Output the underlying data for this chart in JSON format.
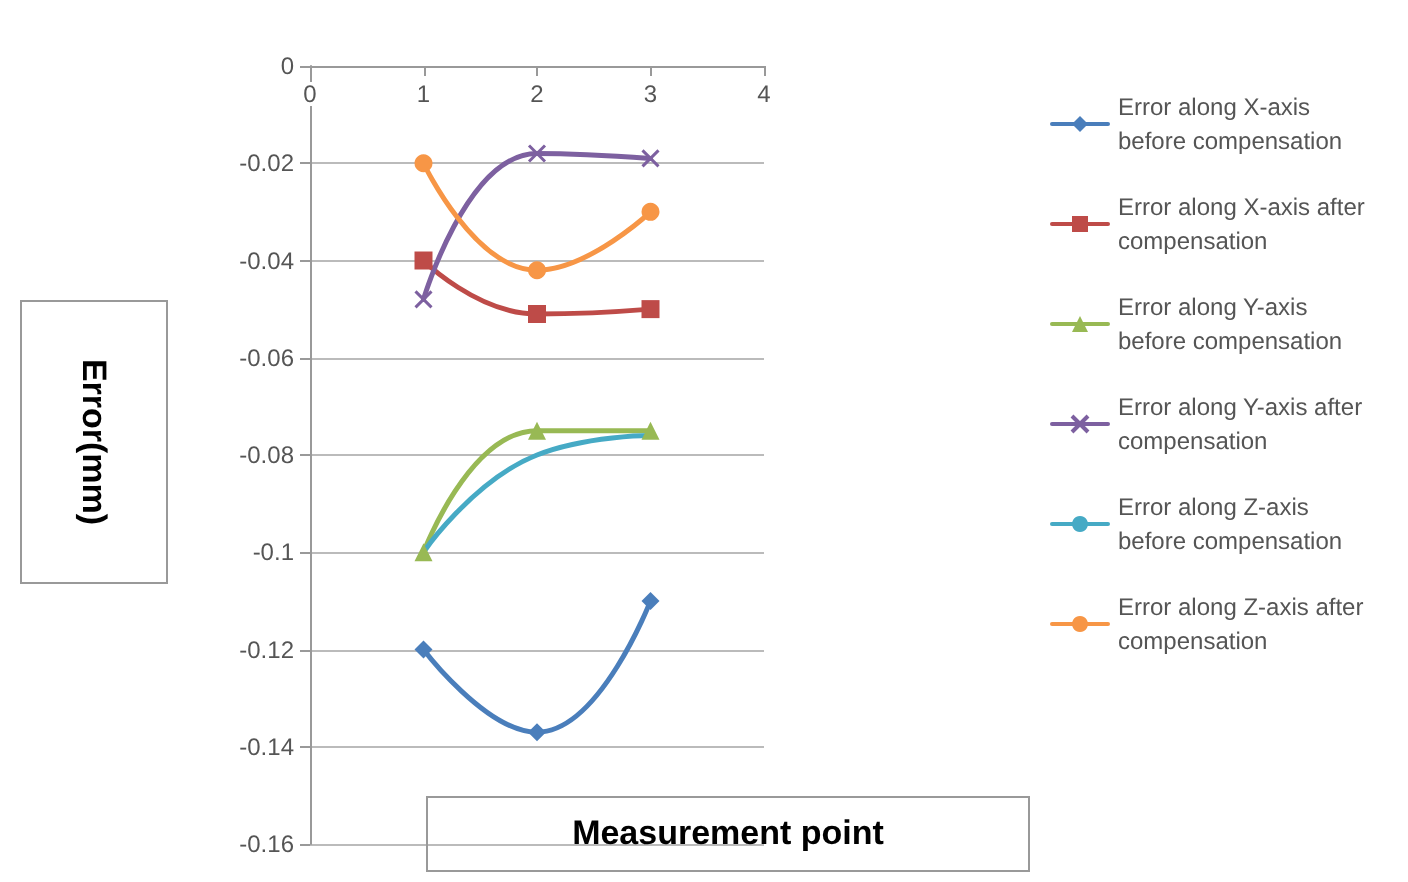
{
  "chart_data": {
    "type": "line",
    "xlabel": "Measurement point",
    "ylabel": "Error(mm)",
    "x": [
      1,
      2,
      3
    ],
    "xlim": [
      0,
      4
    ],
    "xticks": [
      0,
      1,
      2,
      3,
      4
    ],
    "ylim": [
      -0.16,
      0
    ],
    "yticks": [
      -0.16,
      -0.14,
      -0.12,
      -0.1,
      -0.08,
      -0.06,
      -0.04,
      -0.02,
      0
    ],
    "grid": "y",
    "legend": "right",
    "line_style": "solid",
    "series": [
      {
        "name": "Error along X-axis before compensation",
        "color": "#4a7ebb",
        "marker": "diamond",
        "values": [
          -0.12,
          -0.137,
          -0.11
        ]
      },
      {
        "name": "Error along X-axis after compensation",
        "color": "#be4b48",
        "marker": "square",
        "values": [
          -0.04,
          -0.051,
          -0.05
        ]
      },
      {
        "name": "Error along Y-axis before compensation",
        "color": "#98b954",
        "marker": "triangle",
        "values": [
          -0.1,
          -0.075,
          -0.075
        ]
      },
      {
        "name": "Error along Y-axis after compensation",
        "color": "#7d60a0",
        "marker": "cross",
        "values": [
          -0.048,
          -0.018,
          -0.019
        ]
      },
      {
        "name": "Error along Z-axis before compensation",
        "color": "#46aac5",
        "marker": "none",
        "values": [
          -0.1,
          -0.08,
          -0.076
        ]
      },
      {
        "name": "Error along Z-axis after compensation",
        "color": "#f79646",
        "marker": "circle",
        "values": [
          -0.02,
          -0.042,
          -0.03
        ]
      }
    ]
  }
}
